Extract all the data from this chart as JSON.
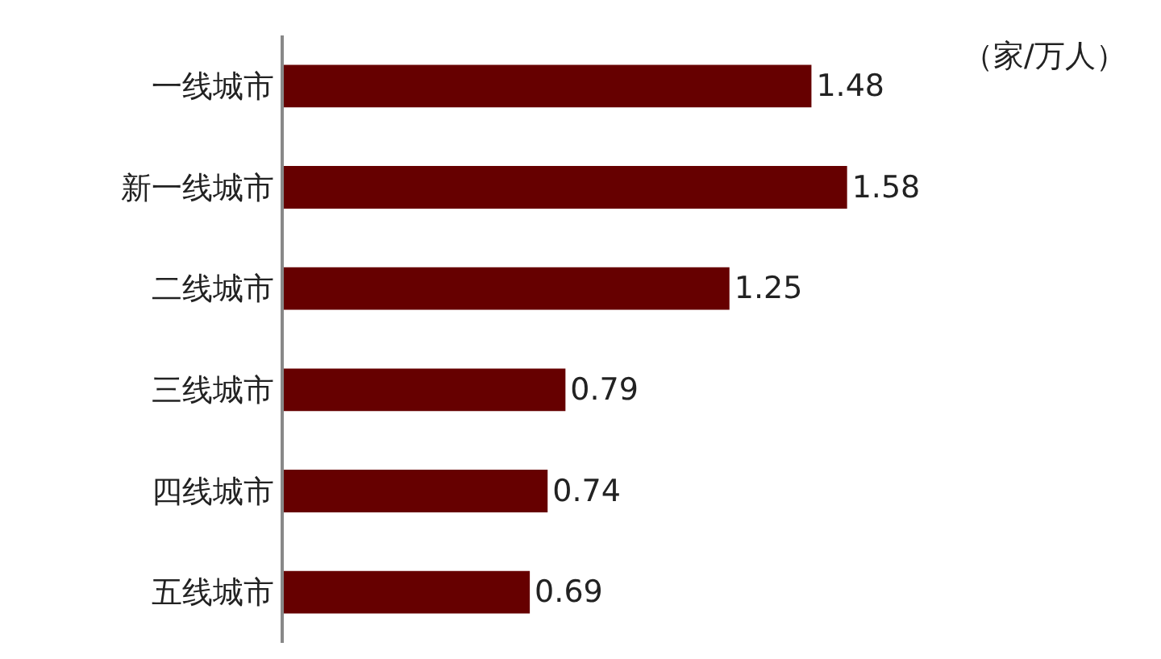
{
  "chart_data": {
    "type": "bar",
    "orientation": "horizontal",
    "categories": [
      "一线城市",
      "新一线城市",
      "二线城市",
      "三线城市",
      "四线城市",
      "五线城市"
    ],
    "values": [
      1.48,
      1.58,
      1.25,
      0.79,
      0.74,
      0.69
    ],
    "color": "#660000",
    "data_labels": true,
    "annotations": [
      "（家/万人）"
    ]
  }
}
